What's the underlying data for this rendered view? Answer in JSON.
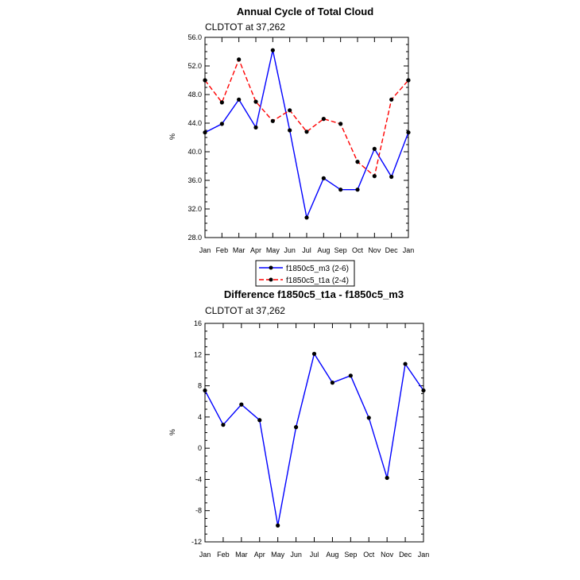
{
  "chart_data": [
    {
      "type": "line",
      "title": "Annual Cycle of Total Cloud",
      "subtitle": "CLDTOT at 37,262",
      "ylabel": "%",
      "xlabel": "",
      "categories": [
        "Jan",
        "Feb",
        "Mar",
        "Apr",
        "May",
        "Jun",
        "Jul",
        "Aug",
        "Sep",
        "Oct",
        "Nov",
        "Dec",
        "Jan"
      ],
      "ylim": [
        28,
        56
      ],
      "yticks": [
        "28.0",
        "32.0",
        "36.0",
        "40.0",
        "44.0",
        "48.0",
        "52.0",
        "56.0"
      ],
      "legend_position": "below",
      "series": [
        {
          "name": "f1850c5_m3 (2-6)",
          "color": "#0000ff",
          "dash": "solid",
          "values": [
            42.7,
            43.9,
            47.3,
            43.4,
            54.2,
            43.0,
            30.8,
            36.3,
            34.7,
            34.7,
            40.4,
            36.5,
            42.7
          ]
        },
        {
          "name": "f1850c5_t1a (2-4)",
          "color": "#ff0000",
          "dash": "dashed",
          "values": [
            50.0,
            46.9,
            52.9,
            47.0,
            44.3,
            45.8,
            42.8,
            44.6,
            43.9,
            38.6,
            36.6,
            47.3,
            50.0
          ]
        }
      ]
    },
    {
      "type": "line",
      "title": "Difference f1850c5_t1a - f1850c5_m3",
      "subtitle": "CLDTOT at 37,262",
      "ylabel": "%",
      "xlabel": "",
      "categories": [
        "Jan",
        "Feb",
        "Mar",
        "Apr",
        "May",
        "Jun",
        "Jul",
        "Aug",
        "Sep",
        "Oct",
        "Nov",
        "Dec",
        "Jan"
      ],
      "ylim": [
        -12,
        16
      ],
      "yticks": [
        "-12",
        "-8",
        "-4",
        "0",
        "4",
        "8",
        "12",
        "16"
      ],
      "series": [
        {
          "color": "#0000ff",
          "dash": "solid",
          "values": [
            7.4,
            3.0,
            5.6,
            3.6,
            -9.9,
            2.7,
            12.1,
            8.4,
            9.3,
            3.9,
            -3.8,
            10.8,
            7.4
          ]
        }
      ]
    }
  ]
}
